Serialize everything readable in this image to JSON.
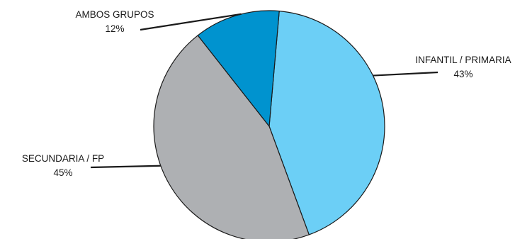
{
  "chart_data": {
    "type": "pie",
    "slices": [
      {
        "label": "INFANTIL / PRIMARIA",
        "value": 43,
        "value_label": "43%",
        "color": "#6ccff6"
      },
      {
        "label": "SECUNDARIA / FP",
        "value": 45,
        "value_label": "45%",
        "color": "#aeb0b3"
      },
      {
        "label": "AMBOS GRUPOS",
        "value": 12,
        "value_label": "12%",
        "color": "#0093cf"
      }
    ],
    "start_angle_deg": 5,
    "direction": "clockwise",
    "slice_outline_color": "#1a1a1a",
    "legend": "none"
  }
}
